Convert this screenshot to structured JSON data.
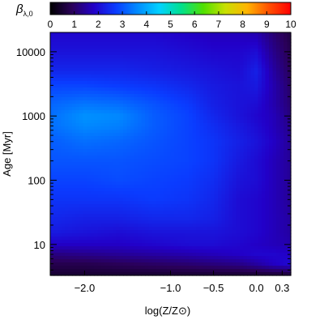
{
  "chart_data": {
    "type": "heatmap",
    "colorbar": {
      "label_symbol": "β",
      "label_subscript": "λ,0",
      "range": [
        0,
        10
      ],
      "tick_labels": [
        "0",
        "1",
        "2",
        "3",
        "4",
        "5",
        "6",
        "7",
        "8",
        "9",
        "10"
      ],
      "colormap": "rainbow",
      "colors": [
        "#000000",
        "#2a005a",
        "#2200c8",
        "#0a3cff",
        "#008cff",
        "#00d2ff",
        "#00e08c",
        "#50e000",
        "#c8e000",
        "#ffb400",
        "#ff5000",
        "#ff0000"
      ]
    },
    "xlabel": "log(Z/Z⊙)",
    "xscale": "linear",
    "xlim": [
      -2.4,
      0.4
    ],
    "x_tick_labels": [
      {
        "value": -2.0,
        "label": "−2.0"
      },
      {
        "value": -1.0,
        "label": "−1.0"
      },
      {
        "value": -0.5,
        "label": "−0.5"
      },
      {
        "value": 0.0,
        "label": "0.0"
      },
      {
        "value": 0.3,
        "label": "0.3"
      }
    ],
    "ylabel_main": "Age",
    "ylabel_unit": "[Myr]",
    "yscale": "log",
    "ylim": [
      3.3,
      20000
    ],
    "y_tick_labels": [
      {
        "value": 10,
        "label": "10"
      },
      {
        "value": 100,
        "label": "100"
      },
      {
        "value": 1000,
        "label": "1000"
      },
      {
        "value": 10000,
        "label": "10000"
      }
    ],
    "z_grid": {
      "x": [
        -2.4,
        -2.0,
        -1.6,
        -1.2,
        -0.8,
        -0.5,
        -0.2,
        0.0,
        0.2,
        0.4
      ],
      "y": [
        3.3,
        5,
        7,
        10,
        15,
        25,
        50,
        100,
        200,
        400,
        700,
        1000,
        1500,
        3000,
        5000,
        10000,
        20000
      ],
      "z": [
        [
          0.5,
          0.5,
          0.5,
          0.5,
          0.5,
          0.5,
          0.5,
          0.5,
          0.5,
          0.5
        ],
        [
          0.8,
          0.8,
          0.9,
          1.0,
          1.1,
          1.2,
          1.3,
          1.5,
          1.8,
          2.0
        ],
        [
          1.2,
          1.3,
          1.4,
          1.5,
          1.6,
          1.7,
          1.8,
          1.9,
          1.9,
          1.8
        ],
        [
          1.8,
          1.8,
          1.8,
          1.9,
          2.0,
          2.0,
          1.9,
          1.8,
          1.7,
          1.6
        ],
        [
          2.2,
          2.1,
          2.0,
          2.1,
          2.1,
          2.1,
          2.0,
          1.9,
          1.7,
          1.5
        ],
        [
          2.4,
          2.3,
          2.3,
          2.4,
          2.4,
          2.3,
          2.0,
          1.9,
          1.7,
          1.5
        ],
        [
          2.6,
          2.6,
          2.6,
          2.7,
          2.6,
          2.4,
          2.0,
          1.9,
          1.7,
          1.4
        ],
        [
          2.8,
          2.8,
          2.9,
          2.8,
          2.7,
          2.5,
          2.1,
          2.0,
          1.7,
          1.4
        ],
        [
          3.0,
          3.0,
          3.0,
          2.9,
          2.8,
          2.6,
          2.2,
          2.0,
          1.7,
          1.4
        ],
        [
          3.1,
          3.3,
          3.2,
          3.0,
          2.8,
          2.6,
          2.3,
          2.1,
          1.8,
          1.4
        ],
        [
          3.3,
          3.6,
          3.5,
          3.1,
          2.8,
          2.5,
          2.2,
          2.0,
          1.7,
          1.3
        ],
        [
          3.3,
          3.7,
          3.6,
          3.1,
          2.8,
          2.4,
          2.1,
          1.9,
          1.7,
          1.2
        ],
        [
          3.2,
          3.4,
          3.3,
          3.0,
          2.7,
          2.3,
          2.1,
          2.0,
          1.6,
          1.1
        ],
        [
          2.8,
          2.8,
          2.7,
          2.6,
          2.4,
          2.2,
          2.1,
          2.2,
          1.6,
          1.0
        ],
        [
          2.4,
          2.4,
          2.4,
          2.3,
          2.2,
          2.1,
          2.0,
          2.3,
          1.5,
          0.9
        ],
        [
          2.1,
          2.1,
          2.1,
          2.1,
          2.0,
          1.9,
          1.9,
          2.0,
          1.3,
          0.8
        ],
        [
          1.9,
          1.9,
          1.9,
          1.9,
          1.8,
          1.7,
          1.7,
          1.6,
          1.1,
          0.7
        ]
      ]
    }
  }
}
